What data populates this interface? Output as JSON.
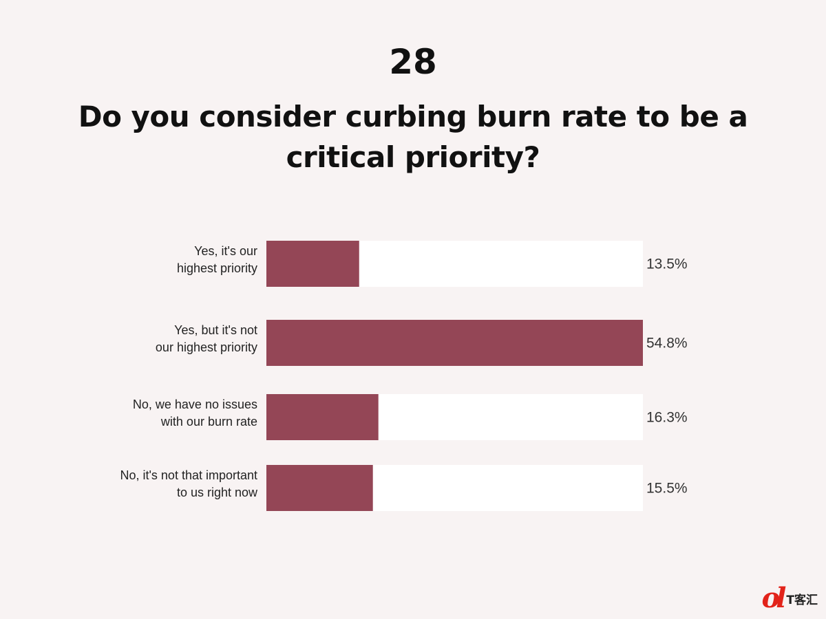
{
  "header": {
    "number": "28",
    "title": "Do you consider curbing burn rate to be a critical priority?"
  },
  "chart_data": {
    "type": "bar",
    "orientation": "horizontal",
    "categories": [
      [
        "Yes, it's our",
        "highest priority"
      ],
      [
        "Yes, but it's not",
        "our highest priority"
      ],
      [
        "No, we have no issues",
        "with our burn rate"
      ],
      [
        "No, it's not that important",
        "to us right now"
      ]
    ],
    "values": [
      13.5,
      54.8,
      16.3,
      15.5
    ],
    "value_labels": [
      "13.5%",
      "54.8%",
      "16.3%",
      "15.5%"
    ],
    "title": "Do you consider curbing burn rate to be a critical priority?",
    "xlim": [
      0,
      54.8
    ],
    "grid": false,
    "legend": "none",
    "colors": {
      "bar": "#944656",
      "track": "#ffffff"
    }
  },
  "watermark": {
    "mark": "ol",
    "text": "T客汇"
  }
}
